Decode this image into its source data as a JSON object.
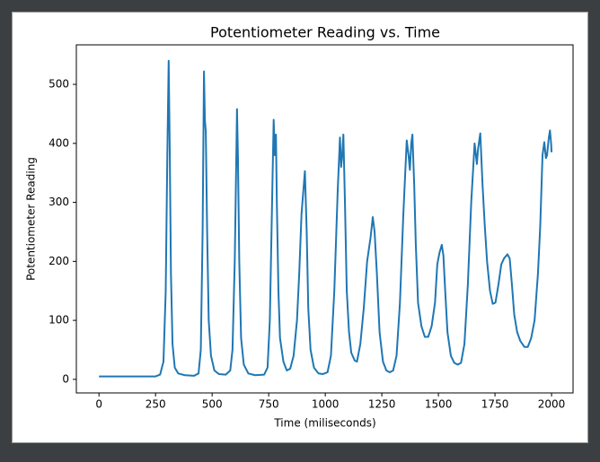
{
  "chart_data": {
    "type": "line",
    "title": "Potentiometer Reading vs. Time",
    "x_label": "Time (miliseconds)",
    "y_label": "Potentiometer Reading",
    "x": [
      0,
      250,
      270,
      285,
      295,
      302,
      308,
      313,
      318,
      325,
      335,
      350,
      380,
      420,
      440,
      450,
      458,
      464,
      468,
      472,
      478,
      485,
      495,
      510,
      530,
      560,
      580,
      590,
      600,
      607,
      610,
      614,
      620,
      628,
      640,
      660,
      690,
      730,
      745,
      755,
      765,
      772,
      777,
      782,
      786,
      793,
      800,
      815,
      830,
      845,
      860,
      875,
      885,
      895,
      910,
      918,
      925,
      935,
      950,
      970,
      990,
      1010,
      1025,
      1040,
      1055,
      1065,
      1070,
      1075,
      1080,
      1087,
      1095,
      1105,
      1115,
      1130,
      1140,
      1155,
      1170,
      1185,
      1200,
      1210,
      1218,
      1228,
      1240,
      1255,
      1270,
      1285,
      1300,
      1315,
      1330,
      1345,
      1360,
      1368,
      1374,
      1380,
      1385,
      1393,
      1400,
      1410,
      1425,
      1440,
      1455,
      1470,
      1485,
      1495,
      1505,
      1515,
      1522,
      1530,
      1540,
      1555,
      1570,
      1585,
      1600,
      1615,
      1630,
      1645,
      1660,
      1670,
      1675,
      1685,
      1695,
      1705,
      1715,
      1728,
      1740,
      1752,
      1765,
      1778,
      1790,
      1805,
      1815,
      1825,
      1835,
      1848,
      1862,
      1880,
      1895,
      1910,
      1925,
      1940,
      1950,
      1960,
      1968,
      1975,
      1980,
      1988,
      1993,
      1998,
      2000
    ],
    "series": [
      {
        "name": "Potentiometer Reading",
        "color": "#1f77b4",
        "values": [
          5,
          5,
          8,
          30,
          150,
          380,
          540,
          380,
          180,
          60,
          20,
          10,
          7,
          6,
          10,
          50,
          250,
          522,
          440,
          420,
          250,
          100,
          40,
          15,
          9,
          8,
          15,
          50,
          200,
          380,
          458,
          380,
          200,
          70,
          25,
          10,
          7,
          8,
          20,
          100,
          300,
          440,
          380,
          415,
          300,
          150,
          70,
          30,
          15,
          18,
          40,
          100,
          180,
          280,
          353,
          250,
          120,
          50,
          20,
          10,
          9,
          12,
          40,
          150,
          320,
          410,
          360,
          380,
          415,
          300,
          150,
          80,
          45,
          32,
          30,
          60,
          120,
          200,
          240,
          275,
          250,
          180,
          80,
          30,
          15,
          12,
          15,
          40,
          130,
          280,
          405,
          380,
          355,
          400,
          415,
          330,
          230,
          130,
          90,
          72,
          72,
          90,
          130,
          195,
          215,
          228,
          210,
          150,
          80,
          40,
          28,
          25,
          28,
          60,
          160,
          300,
          400,
          365,
          390,
          417,
          330,
          260,
          200,
          150,
          128,
          130,
          160,
          195,
          205,
          212,
          205,
          160,
          110,
          80,
          65,
          55,
          55,
          70,
          100,
          180,
          260,
          380,
          402,
          375,
          380,
          410,
          422,
          400,
          385
        ]
      }
    ],
    "xlim": [
      -100,
      2095
    ],
    "ylim": [
      -23,
      567
    ],
    "xticks": [
      0,
      250,
      500,
      750,
      1000,
      1250,
      1500,
      1750,
      2000
    ],
    "yticks": [
      0,
      100,
      200,
      300,
      400,
      500
    ]
  }
}
